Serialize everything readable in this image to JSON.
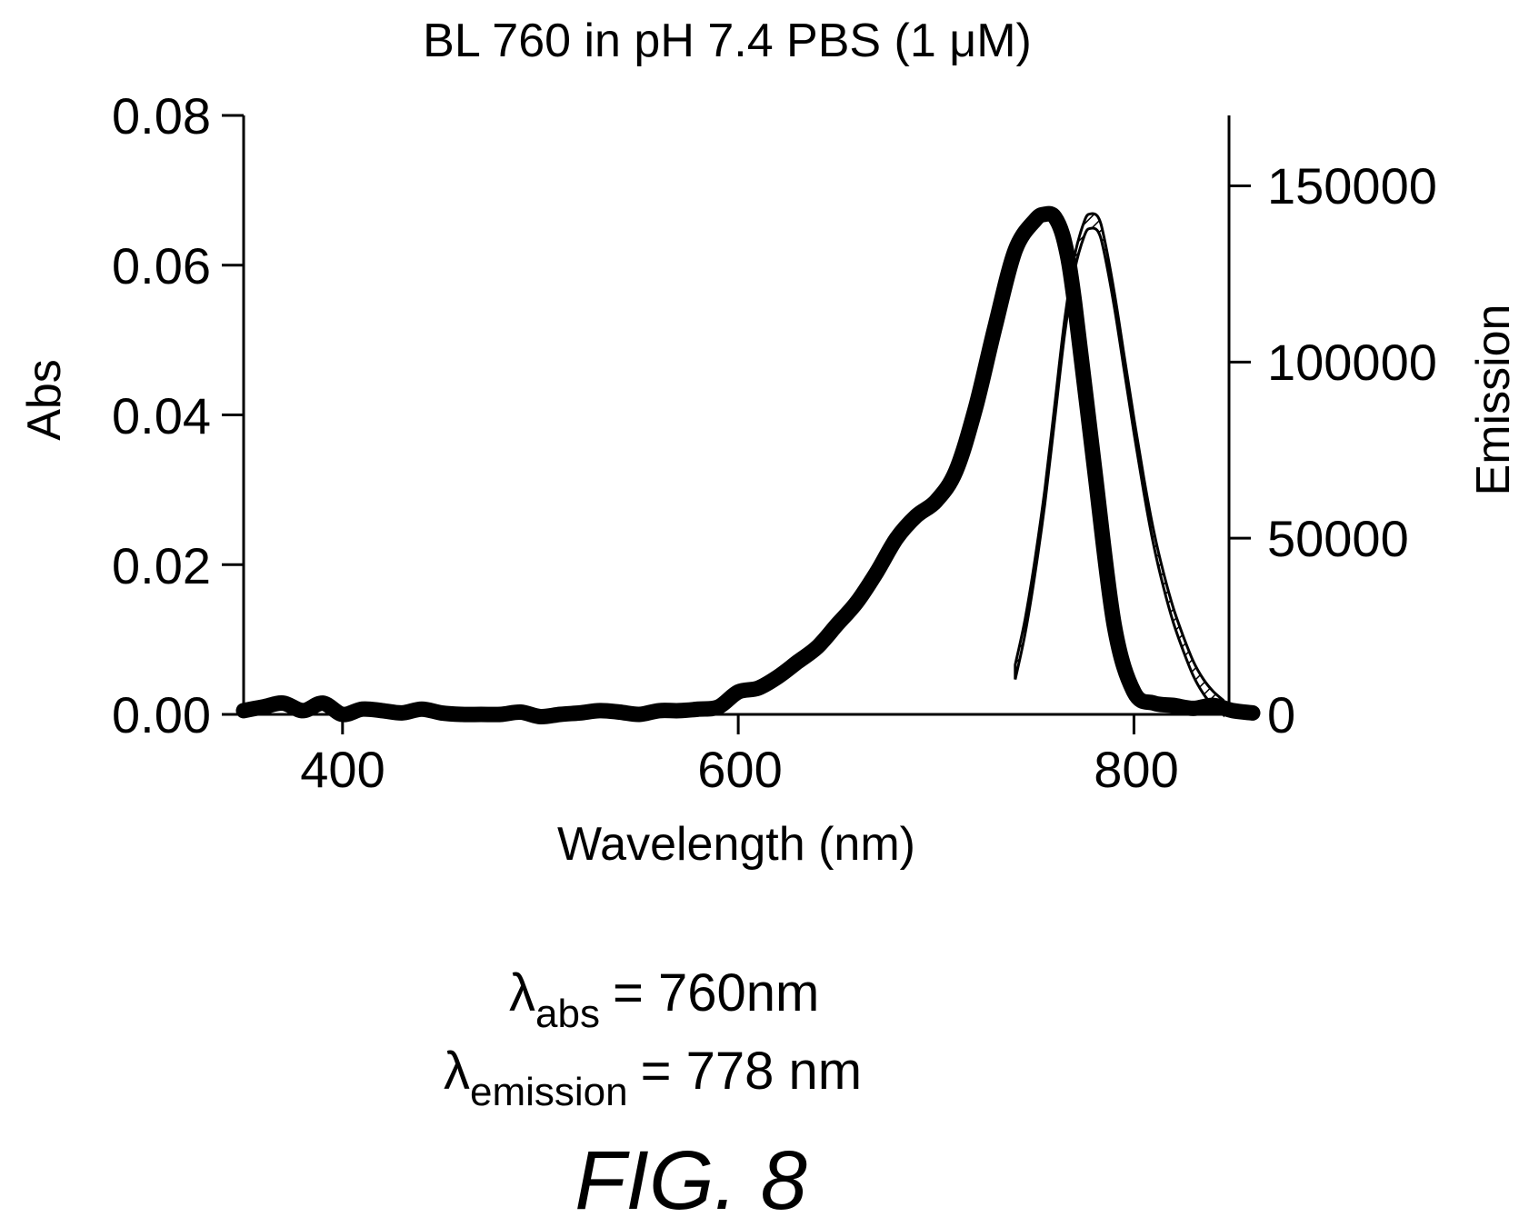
{
  "chart_data": {
    "type": "line",
    "title": "BL 760 in pH 7.4 PBS (1 μM)",
    "xlabel": "Wavelength (nm)",
    "ylabel": "Abs",
    "y2label": "Emission",
    "xlim": [
      350,
      860
    ],
    "ylim": [
      0,
      0.08
    ],
    "y2lim": [
      0,
      170000
    ],
    "x_ticks": [
      "400",
      "600",
      "800"
    ],
    "y_ticks": [
      "0.00",
      "0.02",
      "0.04",
      "0.06",
      "0.08"
    ],
    "y2_ticks": [
      "0",
      "50000",
      "100000",
      "150000"
    ],
    "grid": false,
    "series": [
      {
        "axis": "left",
        "style": "solid-black",
        "x": [
          350,
          360,
          370,
          380,
          390,
          400,
          410,
          420,
          430,
          440,
          450,
          460,
          470,
          480,
          490,
          500,
          510,
          520,
          530,
          540,
          550,
          560,
          570,
          580,
          590,
          600,
          610,
          620,
          630,
          640,
          650,
          660,
          670,
          680,
          690,
          700,
          710,
          720,
          730,
          740,
          750,
          755,
          760,
          765,
          770,
          780,
          790,
          800,
          810,
          820,
          830,
          840,
          850,
          860
        ],
        "y": [
          0.0005,
          0.001,
          0.0015,
          0.0005,
          0.0015,
          0.0,
          0.0007,
          0.0005,
          0.0002,
          0.0007,
          0.0002,
          0.0,
          0.0,
          0.0,
          0.0003,
          -0.0003,
          0.0,
          0.0002,
          0.0005,
          0.0003,
          0.0,
          0.0005,
          0.0005,
          0.0007,
          0.001,
          0.003,
          0.0035,
          0.005,
          0.007,
          0.009,
          0.012,
          0.015,
          0.019,
          0.0235,
          0.0265,
          0.0285,
          0.0325,
          0.041,
          0.052,
          0.062,
          0.066,
          0.0668,
          0.0664,
          0.063,
          0.055,
          0.033,
          0.012,
          0.003,
          0.0015,
          0.0012,
          0.0008,
          0.0012,
          0.0005,
          0.0002
        ]
      },
      {
        "axis": "right",
        "style": "hatched",
        "x": [
          740,
          745,
          750,
          755,
          760,
          765,
          770,
          775,
          778,
          782,
          785,
          790,
          795,
          800,
          805,
          810,
          815,
          820,
          825,
          830,
          835,
          840,
          845
        ],
        "y": [
          12000,
          25000,
          42000,
          62000,
          86000,
          110000,
          128000,
          138000,
          140000,
          139000,
          133000,
          118000,
          100000,
          82000,
          65000,
          50000,
          38000,
          28000,
          20000,
          13000,
          8000,
          4500,
          2000
        ]
      }
    ]
  },
  "annotations": {
    "abs_lambda": "λ",
    "abs_sub": "abs",
    "abs_value": "= 760nm",
    "em_lambda": "λ",
    "em_sub": "emission",
    "em_value": "= 778 nm"
  },
  "figure_label": "FIG. 8"
}
